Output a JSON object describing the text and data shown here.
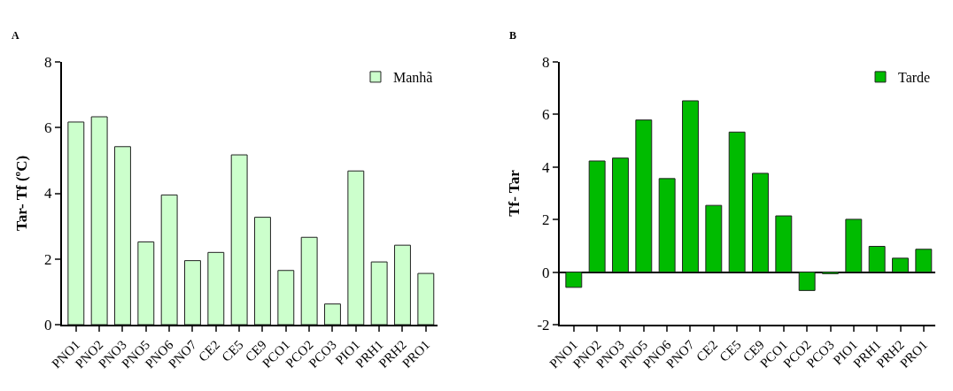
{
  "chart_data": [
    {
      "type": "bar",
      "title": "A",
      "ylabel": "Tar- Tf (ºC)",
      "categories": [
        "PNO1",
        "PNO2",
        "PNO3",
        "PNO5",
        "PNO6",
        "PNO7",
        "CE2",
        "CE5",
        "CE9",
        "PCO1",
        "PCO2",
        "PCO3",
        "PIO1",
        "PRH1",
        "PRH2",
        "PRO1"
      ],
      "series": [
        {
          "name": "Manhã",
          "color": "#ccffcc",
          "values": [
            6.17,
            6.33,
            5.42,
            2.52,
            3.95,
            1.95,
            2.2,
            5.17,
            3.27,
            1.65,
            2.66,
            0.63,
            4.68,
            1.91,
            2.42,
            1.56
          ]
        }
      ],
      "ylim": [
        0,
        8
      ],
      "yticks": [
        0,
        2,
        4,
        6,
        8
      ],
      "legend": "top right"
    },
    {
      "type": "bar",
      "title": "B",
      "ylabel": "Tf- Tar",
      "categories": [
        "PNO1",
        "PNO2",
        "PNO3",
        "PNO5",
        "PNO6",
        "PNO7",
        "CE2",
        "CE5",
        "CE9",
        "PCO1",
        "PCO2",
        "PCO3",
        "PIO1",
        "PRH1",
        "PRH2",
        "PRO1"
      ],
      "series": [
        {
          "name": "Tarde",
          "color": "#00bb00",
          "values": [
            -0.58,
            4.23,
            4.34,
            5.79,
            3.56,
            6.52,
            2.54,
            5.33,
            3.76,
            2.14,
            -0.7,
            -0.06,
            2.01,
            0.98,
            0.53,
            0.87
          ]
        }
      ],
      "ylim": [
        -2,
        8
      ],
      "yticks": [
        -2,
        0,
        2,
        4,
        6,
        8
      ],
      "legend": "top right"
    }
  ]
}
